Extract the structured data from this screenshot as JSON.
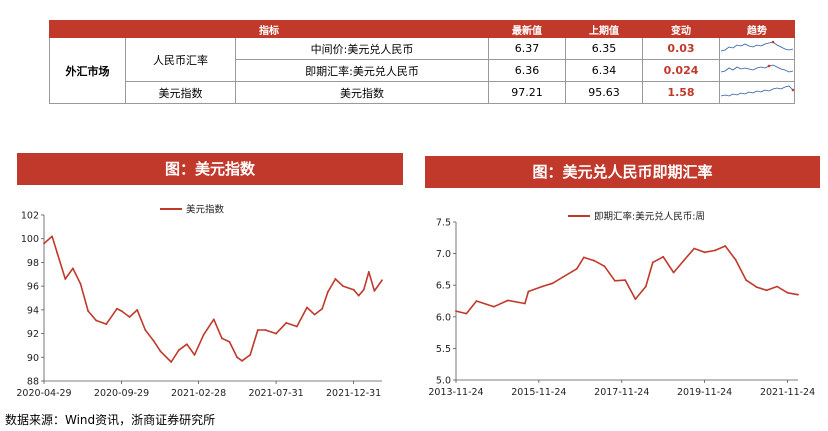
{
  "table": {
    "headers": [
      "指标",
      "最新值",
      "上期值",
      "变动",
      "趋势"
    ],
    "category": "外汇市场",
    "rows": [
      {
        "group": "人民币汇率",
        "name": "中间价:美元兑人民币",
        "latest": "6.37",
        "prev": "6.35",
        "change": "0.03"
      },
      {
        "group": "人民币汇率",
        "name": "即期汇率:美元兑人民币",
        "latest": "6.36",
        "prev": "6.34",
        "change": "0.024"
      },
      {
        "group": "美元指数",
        "name": "美元指数",
        "latest": "97.21",
        "prev": "95.63",
        "change": "1.58"
      }
    ],
    "spark_line_color": "#2f5aa8",
    "spark_marker_color": "#c0392b"
  },
  "left_banner": "图：美元指数",
  "right_banner": "图：美元兑人民币即期汇率",
  "source": "数据来源：Wind资讯，浙商证券研究所",
  "colors": {
    "accent": "#c0392b"
  },
  "chart_data": [
    {
      "type": "line",
      "legend": "美元指数",
      "x_ticks": [
        "2020-04-29",
        "2020-09-29",
        "2021-02-28",
        "2021-07-31",
        "2021-12-31"
      ],
      "ylim": [
        88,
        102
      ],
      "y_ticks": [
        88,
        90,
        92,
        94,
        96,
        98,
        100,
        102
      ],
      "series": [
        {
          "name": "美元指数",
          "color": "#c0392b",
          "x": [
            "2020-04-29",
            "2020-05-15",
            "2020-05-25",
            "2020-06-10",
            "2020-06-25",
            "2020-07-10",
            "2020-07-25",
            "2020-08-10",
            "2020-08-30",
            "2020-09-20",
            "2020-09-29",
            "2020-10-15",
            "2020-10-30",
            "2020-11-15",
            "2020-12-01",
            "2020-12-15",
            "2021-01-05",
            "2021-01-20",
            "2021-02-05",
            "2021-02-20",
            "2021-03-10",
            "2021-03-30",
            "2021-04-15",
            "2021-04-30",
            "2021-05-15",
            "2021-05-25",
            "2021-06-10",
            "2021-06-25",
            "2021-07-10",
            "2021-07-31",
            "2021-08-20",
            "2021-09-10",
            "2021-09-30",
            "2021-10-15",
            "2021-10-30",
            "2021-11-10",
            "2021-11-25",
            "2021-12-10",
            "2021-12-31",
            "2022-01-10",
            "2022-01-20",
            "2022-01-30",
            "2022-02-10",
            "2022-02-25"
          ],
          "values": [
            99.6,
            100.2,
            98.8,
            96.6,
            97.5,
            96.2,
            93.9,
            93.1,
            92.8,
            94.1,
            93.9,
            93.4,
            94.0,
            92.3,
            91.4,
            90.5,
            89.6,
            90.6,
            91.1,
            90.2,
            91.9,
            93.2,
            91.6,
            91.3,
            90.0,
            89.7,
            90.2,
            92.3,
            92.3,
            92.0,
            92.9,
            92.6,
            94.2,
            93.6,
            94.1,
            95.5,
            96.6,
            96.0,
            95.7,
            95.2,
            95.7,
            97.2,
            95.6,
            96.5
          ]
        }
      ]
    },
    {
      "type": "line",
      "legend": "即期汇率:美元兑人民币:周",
      "x_ticks": [
        "2013-11-24",
        "2015-11-24",
        "2017-11-24",
        "2019-11-24",
        "2021-11-24"
      ],
      "ylim": [
        5.0,
        7.5
      ],
      "y_ticks": [
        "5.0",
        "5.5",
        "6.0",
        "6.5",
        "7.0",
        "7.5"
      ],
      "series": [
        {
          "name": "即期汇率:美元兑人民币:周",
          "color": "#c0392b",
          "x": [
            "2013-11-24",
            "2014-02-24",
            "2014-05-24",
            "2014-10-24",
            "2015-02-24",
            "2015-07-24",
            "2015-08-24",
            "2015-12-24",
            "2016-03-24",
            "2016-06-24",
            "2016-10-24",
            "2016-12-24",
            "2017-03-24",
            "2017-06-24",
            "2017-09-24",
            "2017-12-24",
            "2018-03-24",
            "2018-06-24",
            "2018-08-24",
            "2018-11-24",
            "2019-02-24",
            "2019-05-24",
            "2019-08-24",
            "2019-11-24",
            "2020-02-24",
            "2020-05-24",
            "2020-08-24",
            "2020-11-24",
            "2021-02-24",
            "2021-05-24",
            "2021-08-24",
            "2021-11-24",
            "2022-02-24"
          ],
          "values": [
            6.09,
            6.05,
            6.25,
            6.16,
            6.26,
            6.21,
            6.4,
            6.48,
            6.53,
            6.63,
            6.76,
            6.94,
            6.89,
            6.8,
            6.57,
            6.58,
            6.28,
            6.48,
            6.86,
            6.95,
            6.7,
            6.89,
            7.08,
            7.02,
            7.05,
            7.12,
            6.9,
            6.58,
            6.47,
            6.42,
            6.48,
            6.38,
            6.35
          ]
        }
      ]
    }
  ]
}
